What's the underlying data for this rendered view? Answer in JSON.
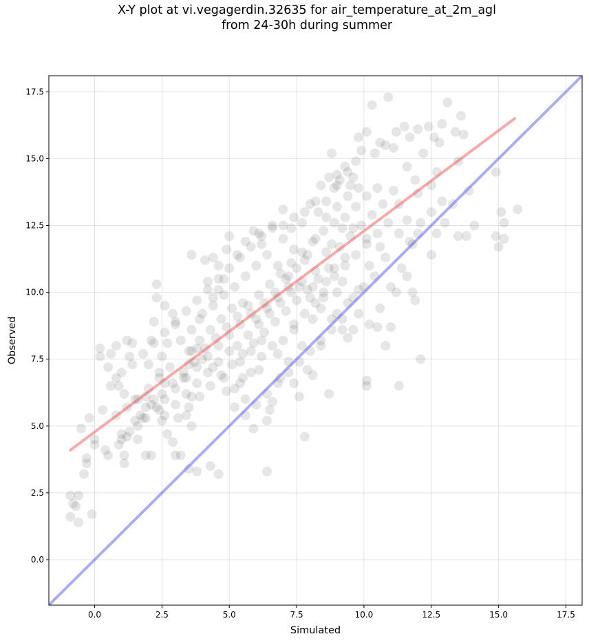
{
  "chart_data": {
    "type": "scatter",
    "title_line1": "X-Y plot at vi.vegagerdin.32635 for air_temperature_at_2m_agl",
    "title_line2": "from 24-30h during summer",
    "xlabel": "Simulated",
    "ylabel": "Observed",
    "xlim": [
      -1.7,
      18.1
    ],
    "ylim": [
      -1.7,
      18.1
    ],
    "grid": true,
    "ticks": [
      0.0,
      2.5,
      5.0,
      7.5,
      10.0,
      12.5,
      15.0,
      17.5
    ],
    "tick_labels": [
      "0.0",
      "2.5",
      "5.0",
      "7.5",
      "10.0",
      "12.5",
      "15.0",
      "17.5"
    ],
    "point_color": "#404040",
    "point_alpha": 0.13,
    "identity_line": {
      "color": "#6666ee",
      "from": [
        -1.7,
        -1.7
      ],
      "to": [
        18.1,
        18.1
      ]
    },
    "fit_line": {
      "color": "#ee5555",
      "from": [
        -0.9,
        4.1
      ],
      "to": [
        15.6,
        16.5
      ]
    },
    "points": [
      [
        -0.9,
        2.4
      ],
      [
        -0.9,
        1.6
      ],
      [
        -0.7,
        2.0
      ],
      [
        -0.6,
        2.4
      ],
      [
        -0.6,
        1.4
      ],
      [
        -0.8,
        2.1
      ],
      [
        -0.4,
        3.2
      ],
      [
        -0.3,
        3.6
      ],
      [
        -0.3,
        3.8
      ],
      [
        -0.1,
        1.7
      ],
      [
        -0.5,
        4.9
      ],
      [
        -0.2,
        5.3
      ],
      [
        0.0,
        4.5
      ],
      [
        0.0,
        4.3
      ],
      [
        0.3,
        5.6
      ],
      [
        0.4,
        4.1
      ],
      [
        0.5,
        3.9
      ],
      [
        0.2,
        7.6
      ],
      [
        0.2,
        7.9
      ],
      [
        0.5,
        7.2
      ],
      [
        0.6,
        7.7
      ],
      [
        0.8,
        8.0
      ],
      [
        0.8,
        6.8
      ],
      [
        0.9,
        6.5
      ],
      [
        1.1,
        6.2
      ],
      [
        1.2,
        8.2
      ],
      [
        1.3,
        7.6
      ],
      [
        1.4,
        8.1
      ],
      [
        1.0,
        4.7
      ],
      [
        1.0,
        4.5
      ],
      [
        1.1,
        3.9
      ],
      [
        1.1,
        3.6
      ],
      [
        1.3,
        4.8
      ],
      [
        1.5,
        5.2
      ],
      [
        1.5,
        6.0
      ],
      [
        1.6,
        4.5
      ],
      [
        1.9,
        3.9
      ],
      [
        2.1,
        3.9
      ],
      [
        1.9,
        5.7
      ],
      [
        1.8,
        5.3
      ],
      [
        1.9,
        6.1
      ],
      [
        2.0,
        7.3
      ],
      [
        2.1,
        8.2
      ],
      [
        2.2,
        8.9
      ],
      [
        2.3,
        10.3
      ],
      [
        2.3,
        9.8
      ],
      [
        2.6,
        9.5
      ],
      [
        2.9,
        9.2
      ],
      [
        3.0,
        8.8
      ],
      [
        2.7,
        8.1
      ],
      [
        2.5,
        7.6
      ],
      [
        2.4,
        7.0
      ],
      [
        2.6,
        6.6
      ],
      [
        2.2,
        6.0
      ],
      [
        2.4,
        5.6
      ],
      [
        2.5,
        5.2
      ],
      [
        2.7,
        4.7
      ],
      [
        2.9,
        4.4
      ],
      [
        3.2,
        3.9
      ],
      [
        3.0,
        3.9
      ],
      [
        3.5,
        3.4
      ],
      [
        3.8,
        3.3
      ],
      [
        4.3,
        3.5
      ],
      [
        4.6,
        3.2
      ],
      [
        6.4,
        3.3
      ],
      [
        3.6,
        5.0
      ],
      [
        3.4,
        5.4
      ],
      [
        3.6,
        6.1
      ],
      [
        3.3,
        6.8
      ],
      [
        3.5,
        7.3
      ],
      [
        3.8,
        7.9
      ],
      [
        3.6,
        8.6
      ],
      [
        3.9,
        9.0
      ],
      [
        3.6,
        11.4
      ],
      [
        4.1,
        11.2
      ],
      [
        4.4,
        11.3
      ],
      [
        4.2,
        10.4
      ],
      [
        4.4,
        9.8
      ],
      [
        4.6,
        10.1
      ],
      [
        4.8,
        10.5
      ],
      [
        4.6,
        11.0
      ],
      [
        4.9,
        11.6
      ],
      [
        5.0,
        12.1
      ],
      [
        5.3,
        11.4
      ],
      [
        5.6,
        11.9
      ],
      [
        5.9,
        12.3
      ],
      [
        6.1,
        12.2
      ],
      [
        6.2,
        11.8
      ],
      [
        6.6,
        12.5
      ],
      [
        7.0,
        13.1
      ],
      [
        7.3,
        12.4
      ],
      [
        7.7,
        12.6
      ],
      [
        8.0,
        13.3
      ],
      [
        8.3,
        13.0
      ],
      [
        8.6,
        13.4
      ],
      [
        8.9,
        13.9
      ],
      [
        9.1,
        14.2
      ],
      [
        9.4,
        14.5
      ],
      [
        9.7,
        14.9
      ],
      [
        9.9,
        15.3
      ],
      [
        8.4,
        14.0
      ],
      [
        8.7,
        14.3
      ],
      [
        8.8,
        15.2
      ],
      [
        9.0,
        14.0
      ],
      [
        9.3,
        14.7
      ],
      [
        9.6,
        14.3
      ],
      [
        9.8,
        15.8
      ],
      [
        10.1,
        16.0
      ],
      [
        10.3,
        17.0
      ],
      [
        10.6,
        15.6
      ],
      [
        10.9,
        17.3
      ],
      [
        10.4,
        15.2
      ],
      [
        10.8,
        15.5
      ],
      [
        11.2,
        16.0
      ],
      [
        11.5,
        16.2
      ],
      [
        11.1,
        15.4
      ],
      [
        11.7,
        15.8
      ],
      [
        12.0,
        16.1
      ],
      [
        12.4,
        16.2
      ],
      [
        12.6,
        15.8
      ],
      [
        12.9,
        16.3
      ],
      [
        13.1,
        17.1
      ],
      [
        13.4,
        16.0
      ],
      [
        13.6,
        16.6
      ],
      [
        13.7,
        15.9
      ],
      [
        12.8,
        15.6
      ],
      [
        12.2,
        15.2
      ],
      [
        11.6,
        14.7
      ],
      [
        11.9,
        14.2
      ],
      [
        12.5,
        14.0
      ],
      [
        12.7,
        14.5
      ],
      [
        12.0,
        13.7
      ],
      [
        11.3,
        13.3
      ],
      [
        11.6,
        12.7
      ],
      [
        12.0,
        12.2
      ],
      [
        11.8,
        11.8
      ],
      [
        12.5,
        11.4
      ],
      [
        12.7,
        12.2
      ],
      [
        13.0,
        12.6
      ],
      [
        13.3,
        13.3
      ],
      [
        13.5,
        12.1
      ],
      [
        13.8,
        12.1
      ],
      [
        14.1,
        12.5
      ],
      [
        13.5,
        14.9
      ],
      [
        13.9,
        13.8
      ],
      [
        14.9,
        14.5
      ],
      [
        14.9,
        12.1
      ],
      [
        15.0,
        11.7
      ],
      [
        15.1,
        13.0
      ],
      [
        15.2,
        12.6
      ],
      [
        15.2,
        12.0
      ],
      [
        15.7,
        13.1
      ],
      [
        10.1,
        6.7
      ],
      [
        10.1,
        6.5
      ],
      [
        11.3,
        6.5
      ],
      [
        12.1,
        7.5
      ],
      [
        10.8,
        8.0
      ],
      [
        11.0,
        8.7
      ],
      [
        10.5,
        8.7
      ],
      [
        11.2,
        10.0
      ],
      [
        11.9,
        9.7
      ],
      [
        11.6,
        10.6
      ],
      [
        11.8,
        10.0
      ],
      [
        9.4,
        8.3
      ],
      [
        9.6,
        8.6
      ],
      [
        9.0,
        9.2
      ],
      [
        8.4,
        8.0
      ],
      [
        7.9,
        7.1
      ],
      [
        8.1,
        6.9
      ],
      [
        7.6,
        6.1
      ],
      [
        8.7,
        6.2
      ],
      [
        7.8,
        4.6
      ],
      [
        6.5,
        5.6
      ],
      [
        6.4,
        5.2
      ],
      [
        6.6,
        5.9
      ],
      [
        5.9,
        4.9
      ],
      [
        5.6,
        5.4
      ],
      [
        5.2,
        5.7
      ],
      [
        4.9,
        6.3
      ],
      [
        5.5,
        6.8
      ],
      [
        6.1,
        7.1
      ],
      [
        6.9,
        6.8
      ],
      [
        7.4,
        6.6
      ],
      [
        7.2,
        7.4
      ],
      [
        6.8,
        7.7
      ],
      [
        7.7,
        8.0
      ],
      [
        7.4,
        8.6
      ],
      [
        8.1,
        9.0
      ],
      [
        8.5,
        9.8
      ],
      [
        9.2,
        10.4
      ],
      [
        9.8,
        10.1
      ],
      [
        10.2,
        11.0
      ],
      [
        10.6,
        11.7
      ],
      [
        10.1,
        12.0
      ],
      [
        9.6,
        12.4
      ],
      [
        9.3,
        11.3
      ],
      [
        8.9,
        10.9
      ],
      [
        8.6,
        11.5
      ],
      [
        8.2,
        12.0
      ],
      [
        7.9,
        11.4
      ],
      [
        7.5,
        10.9
      ],
      [
        7.1,
        10.5
      ],
      [
        6.7,
        10.0
      ],
      [
        6.3,
        9.6
      ],
      [
        5.8,
        9.2
      ],
      [
        5.4,
        8.8
      ],
      [
        5.0,
        8.4
      ],
      [
        4.6,
        8.0
      ],
      [
        4.2,
        7.6
      ],
      [
        3.8,
        7.2
      ],
      [
        3.4,
        6.8
      ],
      [
        3.0,
        6.4
      ],
      [
        2.6,
        6.0
      ],
      [
        2.3,
        5.7
      ],
      [
        1.9,
        5.3
      ],
      [
        1.6,
        5.0
      ],
      [
        1.2,
        4.6
      ],
      [
        0.9,
        4.3
      ],
      [
        0.6,
        6.5
      ],
      [
        1.0,
        7.0
      ],
      [
        1.4,
        7.3
      ],
      [
        1.8,
        7.7
      ],
      [
        2.2,
        8.1
      ],
      [
        2.6,
        8.5
      ],
      [
        3.0,
        8.9
      ],
      [
        3.4,
        9.3
      ],
      [
        3.8,
        9.7
      ],
      [
        4.2,
        10.1
      ],
      [
        4.6,
        10.5
      ],
      [
        5.0,
        10.9
      ],
      [
        5.4,
        11.3
      ],
      [
        5.8,
        11.7
      ],
      [
        6.2,
        12.1
      ],
      [
        6.6,
        12.4
      ],
      [
        7.0,
        12.0
      ],
      [
        7.4,
        11.6
      ],
      [
        7.8,
        11.2
      ],
      [
        8.2,
        10.8
      ],
      [
        8.6,
        10.4
      ],
      [
        9.0,
        10.0
      ],
      [
        9.4,
        9.6
      ],
      [
        9.8,
        9.2
      ],
      [
        10.2,
        8.8
      ],
      [
        10.6,
        9.4
      ],
      [
        11.0,
        10.2
      ],
      [
        11.4,
        10.9
      ],
      [
        10.8,
        11.3
      ],
      [
        10.4,
        10.6
      ],
      [
        10.0,
        10.2
      ],
      [
        9.6,
        9.8
      ],
      [
        9.2,
        9.0
      ],
      [
        8.8,
        8.6
      ],
      [
        8.4,
        8.2
      ],
      [
        8.0,
        7.8
      ],
      [
        7.6,
        7.4
      ],
      [
        7.2,
        7.0
      ],
      [
        6.8,
        6.6
      ],
      [
        6.4,
        6.2
      ],
      [
        6.0,
        5.8
      ],
      [
        5.6,
        6.0
      ],
      [
        5.2,
        6.4
      ],
      [
        4.8,
        6.8
      ],
      [
        4.4,
        7.2
      ],
      [
        4.0,
        7.5
      ],
      [
        3.6,
        7.8
      ],
      [
        3.2,
        8.2
      ],
      [
        2.8,
        7.2
      ],
      [
        2.4,
        6.8
      ],
      [
        2.0,
        6.4
      ],
      [
        1.6,
        6.0
      ],
      [
        1.2,
        5.7
      ],
      [
        0.8,
        5.4
      ],
      [
        3.1,
        5.3
      ],
      [
        3.5,
        5.7
      ],
      [
        3.9,
        6.1
      ],
      [
        4.3,
        6.5
      ],
      [
        4.7,
        6.9
      ],
      [
        5.1,
        7.3
      ],
      [
        5.5,
        7.7
      ],
      [
        5.9,
        8.1
      ],
      [
        6.3,
        8.5
      ],
      [
        6.7,
        8.9
      ],
      [
        7.1,
        9.3
      ],
      [
        7.5,
        9.7
      ],
      [
        7.9,
        10.1
      ],
      [
        8.3,
        10.5
      ],
      [
        8.7,
        10.9
      ],
      [
        9.1,
        11.7
      ],
      [
        9.5,
        12.1
      ],
      [
        9.9,
        12.5
      ],
      [
        10.3,
        12.9
      ],
      [
        10.7,
        13.3
      ],
      [
        11.1,
        13.8
      ],
      [
        10.5,
        13.9
      ],
      [
        10.1,
        13.6
      ],
      [
        9.7,
        13.2
      ],
      [
        9.3,
        12.8
      ],
      [
        8.9,
        12.6
      ],
      [
        8.5,
        12.3
      ],
      [
        8.1,
        11.9
      ],
      [
        7.7,
        11.5
      ],
      [
        7.3,
        11.1
      ],
      [
        6.9,
        10.7
      ],
      [
        6.5,
        10.3
      ],
      [
        6.1,
        9.9
      ],
      [
        5.7,
        9.5
      ],
      [
        5.3,
        9.1
      ],
      [
        4.9,
        8.7
      ],
      [
        4.5,
        8.3
      ],
      [
        4.1,
        7.9
      ],
      [
        3.7,
        7.4
      ],
      [
        3.3,
        7.0
      ],
      [
        2.9,
        6.6
      ],
      [
        2.5,
        6.2
      ],
      [
        2.1,
        5.8
      ],
      [
        1.7,
        5.4
      ],
      [
        4.0,
        9.2
      ],
      [
        4.4,
        9.5
      ],
      [
        4.8,
        9.9
      ],
      [
        5.2,
        10.2
      ],
      [
        5.6,
        10.6
      ],
      [
        6.0,
        11.0
      ],
      [
        6.4,
        11.4
      ],
      [
        6.8,
        11.0
      ],
      [
        7.2,
        10.6
      ],
      [
        7.6,
        10.2
      ],
      [
        8.0,
        9.8
      ],
      [
        8.4,
        9.4
      ],
      [
        8.8,
        9.0
      ],
      [
        9.2,
        8.6
      ],
      [
        6.2,
        7.6
      ],
      [
        5.8,
        7.0
      ],
      [
        5.4,
        6.6
      ],
      [
        5.0,
        7.8
      ],
      [
        4.6,
        7.4
      ],
      [
        4.2,
        7.0
      ],
      [
        3.8,
        6.6
      ],
      [
        3.4,
        6.2
      ],
      [
        3.0,
        5.8
      ],
      [
        2.6,
        5.4
      ],
      [
        5.3,
        8.0
      ],
      [
        5.7,
        8.4
      ],
      [
        6.1,
        8.8
      ],
      [
        6.5,
        9.2
      ],
      [
        6.9,
        9.6
      ],
      [
        7.3,
        10.0
      ],
      [
        7.7,
        10.4
      ],
      [
        8.1,
        10.2
      ],
      [
        8.5,
        10.0
      ],
      [
        8.9,
        10.6
      ],
      [
        9.3,
        11.0
      ],
      [
        9.7,
        11.4
      ],
      [
        10.1,
        11.8
      ],
      [
        10.5,
        12.2
      ],
      [
        10.9,
        12.6
      ],
      [
        11.3,
        12.2
      ],
      [
        11.7,
        11.9
      ],
      [
        12.1,
        12.6
      ],
      [
        12.5,
        13.0
      ],
      [
        12.9,
        13.4
      ],
      [
        6.0,
        9.0
      ],
      [
        6.4,
        9.4
      ],
      [
        6.8,
        9.8
      ],
      [
        7.2,
        10.2
      ],
      [
        5.5,
        9.6
      ],
      [
        5.1,
        9.4
      ],
      [
        4.7,
        9.0
      ],
      [
        4.3,
        8.6
      ],
      [
        3.9,
        8.2
      ],
      [
        3.5,
        7.8
      ],
      [
        7.0,
        8.2
      ],
      [
        7.4,
        8.8
      ],
      [
        7.8,
        9.2
      ],
      [
        8.2,
        9.6
      ],
      [
        6.6,
        8.0
      ],
      [
        6.2,
        8.2
      ],
      [
        5.8,
        7.8
      ],
      [
        5.4,
        7.4
      ],
      [
        8.6,
        12.8
      ],
      [
        9.0,
        13.2
      ],
      [
        9.4,
        13.6
      ],
      [
        9.8,
        13.9
      ],
      [
        8.2,
        13.4
      ],
      [
        7.8,
        13.0
      ],
      [
        7.4,
        12.8
      ],
      [
        7.0,
        12.5
      ],
      [
        9.0,
        14.4
      ],
      [
        9.5,
        14.0
      ],
      [
        8.8,
        11.8
      ],
      [
        9.2,
        12.4
      ]
    ]
  }
}
